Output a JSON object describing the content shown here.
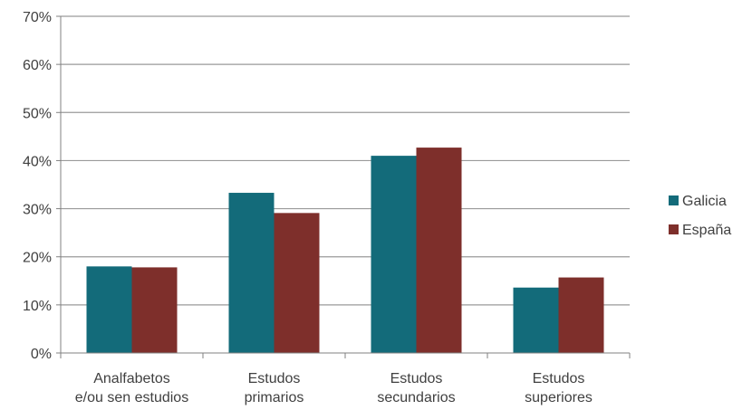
{
  "chart_data": {
    "type": "bar",
    "categories": [
      [
        "Analfabetos",
        "e/ou sen estudios"
      ],
      [
        "Estudos",
        "primarios"
      ],
      [
        "Estudos",
        "secundarios"
      ],
      [
        "Estudos",
        "superiores"
      ]
    ],
    "series": [
      {
        "name": "Galicia",
        "color": "#136b7a",
        "values": [
          18.0,
          33.3,
          41.0,
          13.6
        ]
      },
      {
        "name": "España",
        "color": "#7e2f2b",
        "values": [
          17.8,
          29.1,
          42.7,
          15.7
        ]
      }
    ],
    "title": "",
    "xlabel": "",
    "ylabel": "",
    "ylim": [
      0,
      70
    ],
    "ytick_step": 10,
    "ytick_format": "percent",
    "grid": true,
    "gridline_color": "#9a9a9a",
    "axis_color": "#808080",
    "legend_position": "right"
  }
}
